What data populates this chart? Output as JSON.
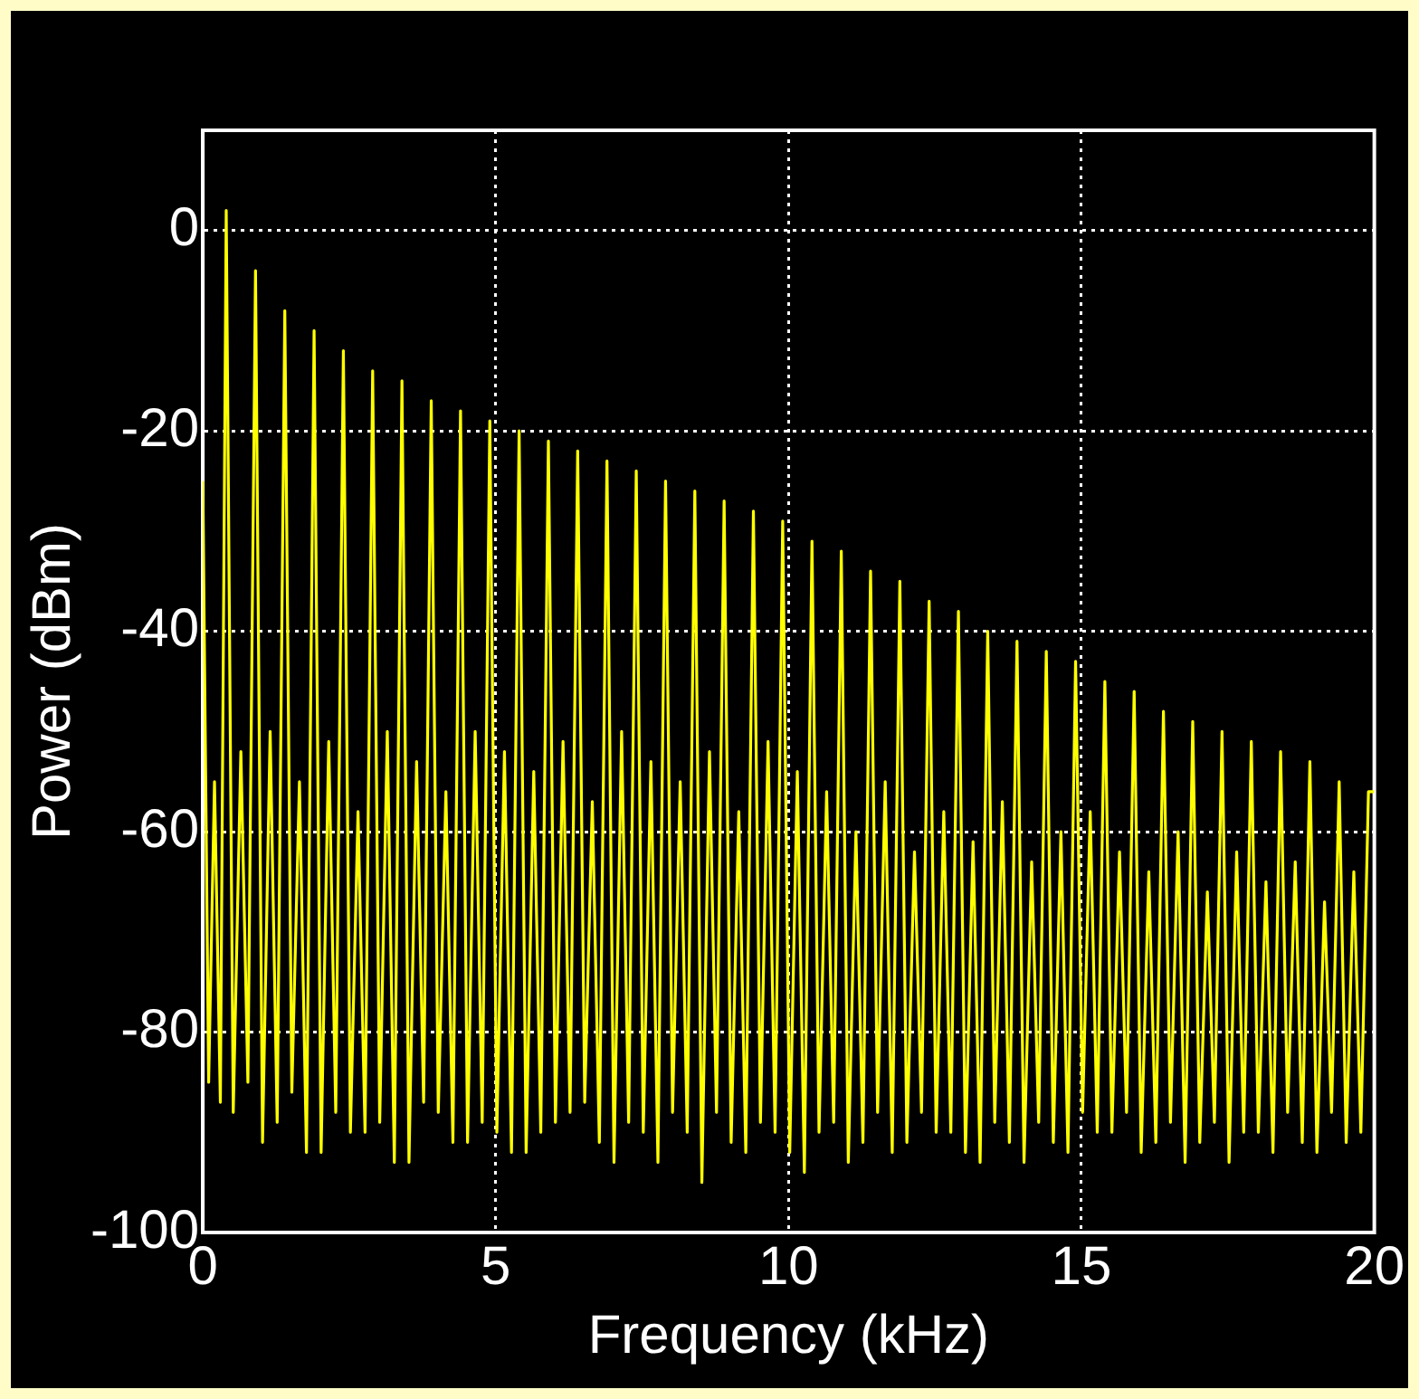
{
  "chart_data": {
    "type": "line",
    "xlabel": "Frequency (kHz)",
    "ylabel": "Power (dBm)",
    "xlim": [
      0,
      20
    ],
    "xticks": [
      0,
      5,
      10,
      15,
      20
    ],
    "ylim": [
      -100,
      10
    ],
    "yticks": [
      -100,
      -80,
      -60,
      -40,
      -20,
      0
    ],
    "grid": true,
    "legend": false,
    "series": [
      {
        "color": "#ffff00",
        "x": [
          0,
          0.1,
          0.2,
          0.3,
          0.4,
          0.52,
          0.65,
          0.77,
          0.9,
          1.02,
          1.15,
          1.27,
          1.4,
          1.52,
          1.65,
          1.77,
          1.9,
          2.02,
          2.15,
          2.27,
          2.4,
          2.52,
          2.65,
          2.77,
          2.9,
          3.02,
          3.15,
          3.27,
          3.4,
          3.52,
          3.65,
          3.77,
          3.9,
          4.02,
          4.15,
          4.27,
          4.4,
          4.52,
          4.65,
          4.77,
          4.9,
          5.02,
          5.15,
          5.27,
          5.4,
          5.52,
          5.65,
          5.77,
          5.9,
          6.02,
          6.15,
          6.27,
          6.4,
          6.52,
          6.65,
          6.77,
          6.9,
          7.02,
          7.15,
          7.27,
          7.4,
          7.52,
          7.65,
          7.77,
          7.9,
          8.02,
          8.15,
          8.27,
          8.4,
          8.52,
          8.65,
          8.77,
          8.9,
          9.02,
          9.15,
          9.27,
          9.4,
          9.52,
          9.65,
          9.77,
          9.9,
          10.02,
          10.15,
          10.27,
          10.4,
          10.52,
          10.65,
          10.77,
          10.9,
          11.02,
          11.15,
          11.27,
          11.4,
          11.52,
          11.65,
          11.77,
          11.9,
          12.02,
          12.15,
          12.27,
          12.4,
          12.52,
          12.65,
          12.77,
          12.9,
          13.02,
          13.15,
          13.27,
          13.4,
          13.52,
          13.65,
          13.77,
          13.9,
          14.02,
          14.15,
          14.27,
          14.4,
          14.52,
          14.65,
          14.77,
          14.9,
          15.02,
          15.15,
          15.27,
          15.4,
          15.52,
          15.65,
          15.77,
          15.9,
          16.02,
          16.15,
          16.27,
          16.4,
          16.52,
          16.65,
          16.77,
          16.9,
          17.02,
          17.15,
          17.27,
          17.4,
          17.52,
          17.65,
          17.77,
          17.9,
          18.02,
          18.15,
          18.27,
          18.4,
          18.52,
          18.65,
          18.77,
          18.9,
          19.02,
          19.15,
          19.27,
          19.4,
          19.52,
          19.65,
          19.77,
          19.9,
          20
        ],
        "values": [
          -25,
          -85,
          -55,
          -87,
          2,
          -88,
          -52,
          -85,
          -4,
          -91,
          -50,
          -89,
          -8,
          -86,
          -55,
          -92,
          -10,
          -92,
          -51,
          -88,
          -12,
          -90,
          -58,
          -90,
          -14,
          -89,
          -50,
          -93,
          -15,
          -93,
          -53,
          -87,
          -17,
          -88,
          -56,
          -91,
          -18,
          -91,
          -50,
          -89,
          -19,
          -90,
          -52,
          -92,
          -20,
          -92,
          -54,
          -90,
          -21,
          -89,
          -51,
          -88,
          -22,
          -87,
          -57,
          -91,
          -23,
          -93,
          -50,
          -89,
          -24,
          -90,
          -53,
          -93,
          -25,
          -88,
          -55,
          -90,
          -26,
          -95,
          -52,
          -88,
          -27,
          -91,
          -58,
          -92,
          -28,
          -89,
          -51,
          -90,
          -29,
          -92,
          -54,
          -94,
          -31,
          -90,
          -56,
          -89,
          -32,
          -93,
          -60,
          -91,
          -34,
          -88,
          -55,
          -92,
          -35,
          -91,
          -62,
          -88,
          -37,
          -90,
          -58,
          -90,
          -38,
          -92,
          -61,
          -93,
          -40,
          -89,
          -57,
          -91,
          -41,
          -93,
          -63,
          -89,
          -42,
          -91,
          -60,
          -92,
          -43,
          -88,
          -58,
          -90,
          -45,
          -90,
          -62,
          -88,
          -46,
          -92,
          -64,
          -91,
          -48,
          -89,
          -60,
          -93,
          -49,
          -91,
          -66,
          -89,
          -50,
          -93,
          -62,
          -90,
          -51,
          -90,
          -65,
          -92,
          -52,
          -88,
          -63,
          -91,
          -53,
          -92,
          -67,
          -88,
          -55,
          -91,
          -64,
          -90,
          -56,
          -56
        ]
      }
    ]
  }
}
